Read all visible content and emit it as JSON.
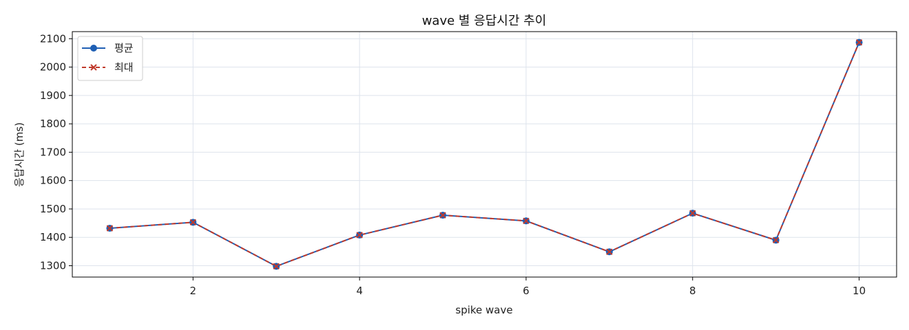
{
  "chart_data": {
    "type": "line",
    "title": "wave 별 응답시간 추이",
    "xlabel": "spike wave",
    "ylabel": "응답시간 (ms)",
    "x": [
      1,
      2,
      3,
      4,
      5,
      6,
      7,
      8,
      9,
      10
    ],
    "xlim": [
      0.55,
      10.45
    ],
    "ylim": [
      1260,
      2125
    ],
    "xticks": [
      2,
      4,
      6,
      8,
      10
    ],
    "yticks": [
      1300,
      1400,
      1500,
      1600,
      1700,
      1800,
      1900,
      2000,
      2100
    ],
    "grid": true,
    "legend_position": "top-left",
    "series": [
      {
        "name": "평균",
        "color": "#1f5fb4",
        "linestyle": "solid",
        "marker": "circle",
        "values": [
          1432,
          1453,
          1298,
          1408,
          1478,
          1458,
          1349,
          1485,
          1390,
          2087
        ]
      },
      {
        "name": "최대",
        "color": "#c0392b",
        "linestyle": "dashed",
        "marker": "x",
        "values": [
          1432,
          1453,
          1298,
          1408,
          1478,
          1458,
          1349,
          1485,
          1390,
          2087
        ]
      }
    ]
  }
}
